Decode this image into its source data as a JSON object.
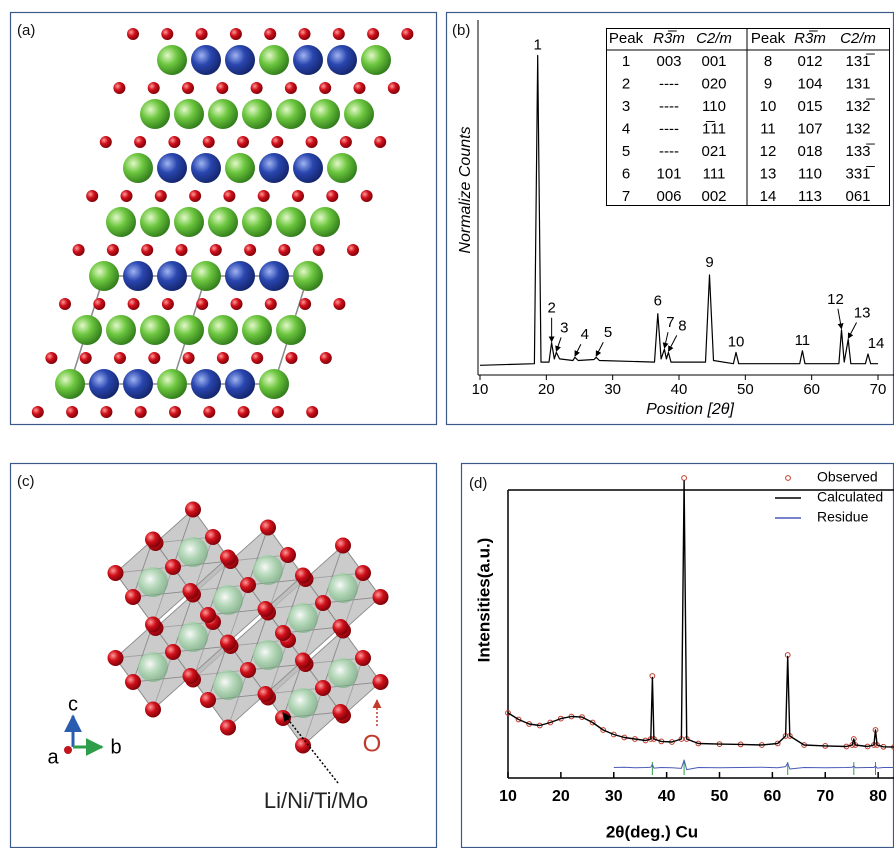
{
  "panels": [
    {
      "label": "(a)"
    },
    {
      "label": "(c)",
      "axes": [
        "a",
        "b",
        "c"
      ],
      "site_label": "Li/Ni/Ti/Mo",
      "oxygen_label": "O"
    }
  ],
  "chart_data": [
    {
      "type": "line",
      "panel_label": "(b)",
      "ylabel": "Normalize Counts",
      "xlabel": "Position [2θ]",
      "x": [
        10,
        18.2,
        18.7,
        19.2,
        20.4,
        20.8,
        21.2,
        21.5,
        22,
        24.0,
        24.3,
        24.8,
        27.2,
        27.5,
        28,
        36.3,
        36.8,
        37.3,
        37.8,
        38.1,
        38.4,
        38.8,
        44,
        44.6,
        45.2,
        48.2,
        48.6,
        49,
        58.2,
        58.6,
        59,
        64.1,
        64.5,
        64.9,
        65.5,
        65.9,
        68.1,
        68.5,
        68.9,
        70
      ],
      "values": [
        3,
        3.5,
        99,
        4,
        4,
        10,
        5,
        7,
        5,
        4.5,
        5.5,
        4.5,
        4.8,
        5.5,
        4.5,
        4,
        19,
        5,
        8,
        5,
        7,
        4,
        4,
        31,
        4.5,
        3.5,
        7,
        3.5,
        3.5,
        7.5,
        3.5,
        3.5,
        14,
        4,
        11,
        3.5,
        3.5,
        6.5,
        3.5,
        3.5
      ],
      "color": "#000000",
      "xlim": [
        10,
        70
      ],
      "xticks": [
        10,
        20,
        30,
        40,
        50,
        60,
        70
      ],
      "ylim": [
        0,
        110
      ],
      "peak_labels": [
        "1",
        "2",
        "3",
        "4",
        "5",
        "6",
        "7",
        "8",
        "9",
        "10",
        "11",
        "12",
        "13",
        "14"
      ],
      "table": {
        "header": [
          "Peak",
          "R3̅m",
          "C2/m",
          "Peak",
          "R3̅m",
          "C2/m"
        ],
        "rows": [
          [
            "1",
            "003",
            "001",
            "8",
            "012",
            "131̅"
          ],
          [
            "2",
            "----",
            "020",
            "9",
            "104",
            "131"
          ],
          [
            "3",
            "----",
            "110",
            "10",
            "015",
            "132̅"
          ],
          [
            "4",
            "----",
            "1̅11",
            "11",
            "107",
            "132"
          ],
          [
            "5",
            "----",
            "021",
            "12",
            "018",
            "133̅"
          ],
          [
            "6",
            "101",
            "111",
            "13",
            "110",
            "331̅"
          ],
          [
            "7",
            "006",
            "002",
            "14",
            "113",
            "061"
          ]
        ]
      }
    },
    {
      "type": "line",
      "panel_label": "(d)",
      "ylabel": "Intensities(a.u.)",
      "xlabel": "2θ(deg.) Cu",
      "x": [
        10,
        12,
        14,
        16,
        18,
        20,
        22,
        24,
        26,
        28,
        30,
        32,
        34,
        36,
        37,
        37.3,
        37.6,
        39,
        41,
        42.8,
        43.3,
        43.8,
        46,
        50,
        54,
        58,
        61,
        62.5,
        62.9,
        63.3,
        66,
        70,
        74,
        75.1,
        75.4,
        75.7,
        78,
        79.2,
        79.5,
        79.8,
        81,
        83
      ],
      "series": [
        {
          "name": "Observed",
          "color": "#c0392b",
          "marker": "circle",
          "values": [
            21.7,
            19.5,
            18,
            17.5,
            18.5,
            19.8,
            20.5,
            20.3,
            18.5,
            16,
            14.5,
            13.5,
            13,
            12.5,
            13,
            34,
            13,
            12.2,
            12,
            13,
            100,
            13,
            11.5,
            11.3,
            11.2,
            11,
            11.5,
            14,
            41,
            14,
            11,
            10.7,
            10.5,
            11,
            13,
            11,
            10.5,
            11,
            16,
            11,
            10.4,
            10.3
          ]
        },
        {
          "name": "Calculated",
          "color": "#000000",
          "values": [
            21.7,
            19.5,
            18,
            17.5,
            18.5,
            19.8,
            20.5,
            20.3,
            18.5,
            16,
            14.5,
            13.5,
            13,
            12.5,
            13,
            33.5,
            13,
            12.2,
            12,
            13,
            99,
            13,
            11.5,
            11.3,
            11.2,
            11,
            11.5,
            14,
            40.5,
            14,
            11,
            10.7,
            10.5,
            11,
            13,
            11,
            10.5,
            11,
            16,
            11,
            10.4,
            10.3
          ]
        },
        {
          "name": "Residue",
          "color": "#4a5ab8",
          "values": [
            null,
            null,
            null,
            null,
            null,
            null,
            null,
            null,
            null,
            null,
            3.5,
            3.6,
            3.4,
            3.5,
            3.6,
            4.5,
            3.3,
            3.5,
            3.4,
            3.2,
            6,
            2.8,
            3.5,
            3.4,
            3.5,
            3.6,
            3.4,
            3.8,
            5,
            3,
            3.5,
            3.4,
            3.5,
            3.6,
            4,
            3.4,
            3.5,
            3.5,
            4,
            3.3,
            3.5,
            3.5
          ]
        }
      ],
      "reflections": [
        37.3,
        43.3,
        62.9,
        75.4,
        79.5
      ],
      "reflection_color": "#2e9e4a",
      "xlim": [
        10,
        83
      ],
      "xticks": [
        10,
        20,
        30,
        40,
        50,
        60,
        70,
        80
      ],
      "ylim": [
        0,
        100
      ],
      "legend": "upper right"
    }
  ]
}
